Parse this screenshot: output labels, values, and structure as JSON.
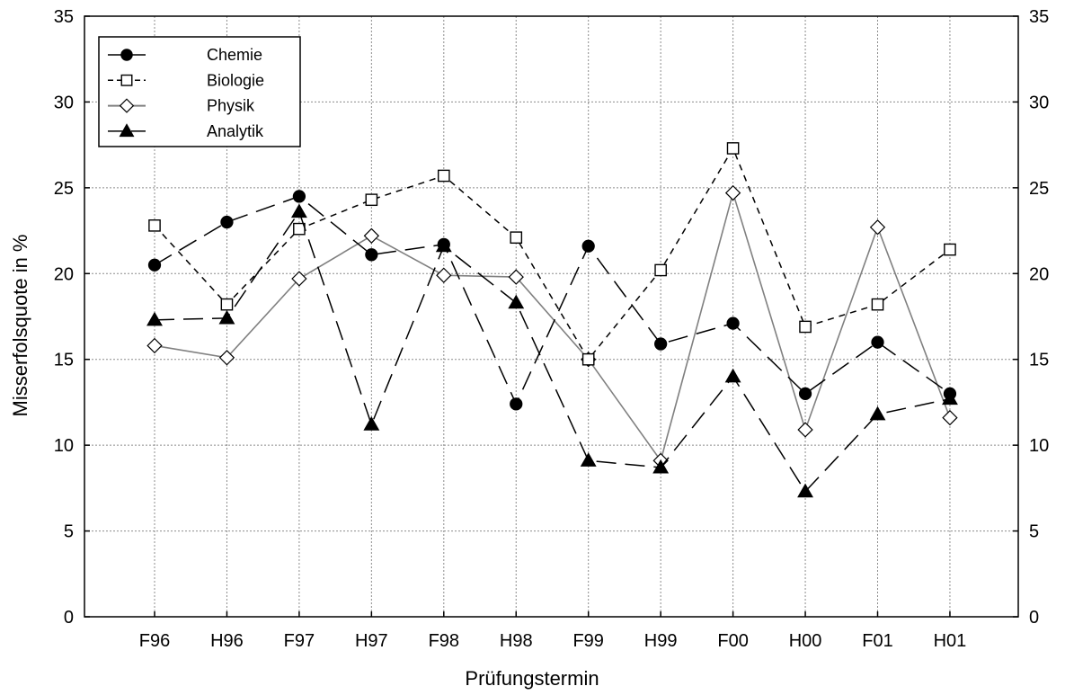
{
  "chart_data": {
    "type": "line",
    "xlabel": "Prüfungstermin",
    "ylabel": "Misserfolsquote in %",
    "ylim": [
      0,
      35
    ],
    "yticks": [
      0,
      5,
      10,
      15,
      20,
      25,
      30,
      35
    ],
    "categories": [
      "F96",
      "H96",
      "F97",
      "H97",
      "F98",
      "H98",
      "F99",
      "H99",
      "F00",
      "H00",
      "F01",
      "H01"
    ],
    "grid": true,
    "legend_position": "top-left",
    "series": [
      {
        "name": "Chemie",
        "marker": "filled-circle",
        "line_style": "long-dash",
        "color": "#000000",
        "values": [
          20.5,
          23.0,
          24.5,
          21.1,
          21.7,
          12.4,
          21.6,
          15.9,
          17.1,
          13.0,
          16.0,
          13.0
        ]
      },
      {
        "name": "Biologie",
        "marker": "open-square",
        "line_style": "short-dash",
        "color": "#000000",
        "values": [
          22.8,
          18.2,
          22.6,
          24.3,
          25.7,
          22.1,
          15.0,
          20.2,
          27.3,
          16.9,
          18.2,
          21.4
        ]
      },
      {
        "name": "Physik",
        "marker": "open-diamond",
        "line_style": "solid",
        "color": "#808080",
        "values": [
          15.8,
          15.1,
          19.7,
          22.2,
          19.9,
          19.8,
          15.0,
          9.1,
          24.7,
          10.9,
          22.7,
          11.6
        ]
      },
      {
        "name": "Analytik",
        "marker": "filled-triangle",
        "line_style": "long-dash",
        "color": "#000000",
        "values": [
          17.3,
          17.4,
          23.6,
          11.2,
          21.6,
          18.3,
          9.1,
          8.7,
          14.0,
          7.3,
          11.8,
          12.7
        ]
      }
    ]
  }
}
